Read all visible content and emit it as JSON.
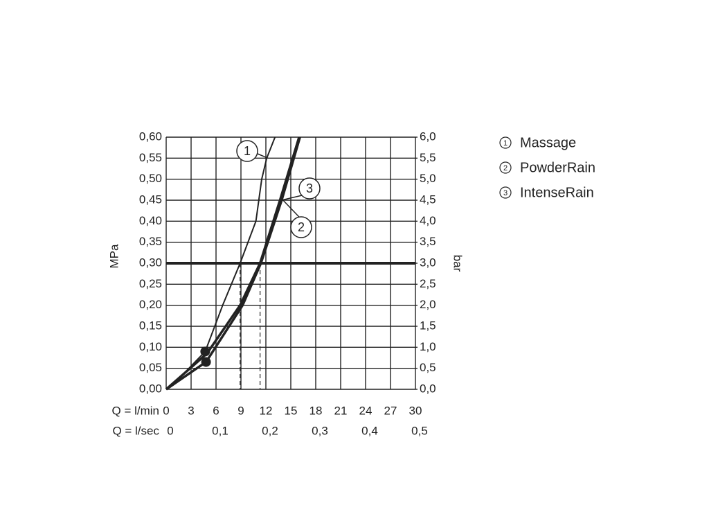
{
  "chart_data": {
    "type": "line",
    "ylabel": "MPa",
    "y2label": "bar",
    "xlabel": "Q = l/min",
    "x2label": "Q = l/sec",
    "xlim": [
      0,
      30
    ],
    "xticks": [
      0,
      3,
      6,
      9,
      12,
      15,
      18,
      21,
      24,
      27,
      30
    ],
    "x2lim": [
      0,
      0.5
    ],
    "x2ticks": [
      0,
      {
        "value": 0.1,
        "label": "0,1"
      },
      {
        "value": 0.2,
        "label": "0,2"
      },
      {
        "value": 0.3,
        "label": "0,3"
      },
      {
        "value": 0.4,
        "label": "0,4"
      },
      {
        "value": 0.5,
        "label": "0,5"
      }
    ],
    "ylim": [
      0,
      0.6
    ],
    "yticks": [
      {
        "value": 0,
        "label": "0,00"
      },
      {
        "value": 0.05,
        "label": "0,05"
      },
      {
        "value": 0.1,
        "label": "0,10"
      },
      {
        "value": 0.15,
        "label": "0,15"
      },
      {
        "value": 0.2,
        "label": "0,20"
      },
      {
        "value": 0.25,
        "label": "0,25"
      },
      {
        "value": 0.3,
        "label": "0,30"
      },
      {
        "value": 0.35,
        "label": "0,35"
      },
      {
        "value": 0.4,
        "label": "0,40"
      },
      {
        "value": 0.45,
        "label": "0,45"
      },
      {
        "value": 0.5,
        "label": "0,50"
      },
      {
        "value": 0.55,
        "label": "0,55"
      },
      {
        "value": 0.6,
        "label": "0,60"
      }
    ],
    "y2lim": [
      0,
      6
    ],
    "y2ticks": [
      {
        "value": 0,
        "label": "0,0"
      },
      {
        "value": 0.5,
        "label": "0,5"
      },
      {
        "value": 1,
        "label": "1,0"
      },
      {
        "value": 1.5,
        "label": "1,5"
      },
      {
        "value": 2,
        "label": "2,0"
      },
      {
        "value": 2.5,
        "label": "2,5"
      },
      {
        "value": 3,
        "label": "3,0"
      },
      {
        "value": 3.5,
        "label": "3,5"
      },
      {
        "value": 4,
        "label": "4,0"
      },
      {
        "value": 4.5,
        "label": "4,5"
      },
      {
        "value": 5,
        "label": "5,0"
      },
      {
        "value": 5.5,
        "label": "5,5"
      },
      {
        "value": 6,
        "label": "6,0"
      }
    ],
    "grid": true,
    "reference_line": 0.3,
    "dashed_x": [
      8.9,
      11.3
    ],
    "series": [
      {
        "label": "1",
        "name": "Massage",
        "color": "#222",
        "width": 2,
        "x": [
          0,
          2,
          4.7,
          6.8,
          8.9,
          10.8,
          11.5,
          12.1,
          13.1
        ],
        "values": [
          0,
          0.035,
          0.09,
          0.2,
          0.3,
          0.4,
          0.5,
          0.55,
          0.6
        ]
      },
      {
        "label": "2",
        "name": "PowderRain",
        "color": "#222",
        "width": 3.5,
        "x": [
          0,
          4.8,
          9.2,
          11.4,
          13.9,
          16.1
        ],
        "values": [
          0,
          0.065,
          0.2,
          0.3,
          0.45,
          0.6
        ]
      },
      {
        "label": "3",
        "name": "IntenseRain",
        "color": "#222",
        "width": 3.5,
        "x": [
          0,
          4.9,
          8.9,
          11.3,
          13.7,
          16
        ],
        "values": [
          0,
          0.085,
          0.2,
          0.3,
          0.45,
          0.6
        ]
      }
    ],
    "points": [
      {
        "x": 4.7,
        "y": 0.09
      },
      {
        "x": 4.8,
        "y": 0.065
      }
    ]
  }
}
